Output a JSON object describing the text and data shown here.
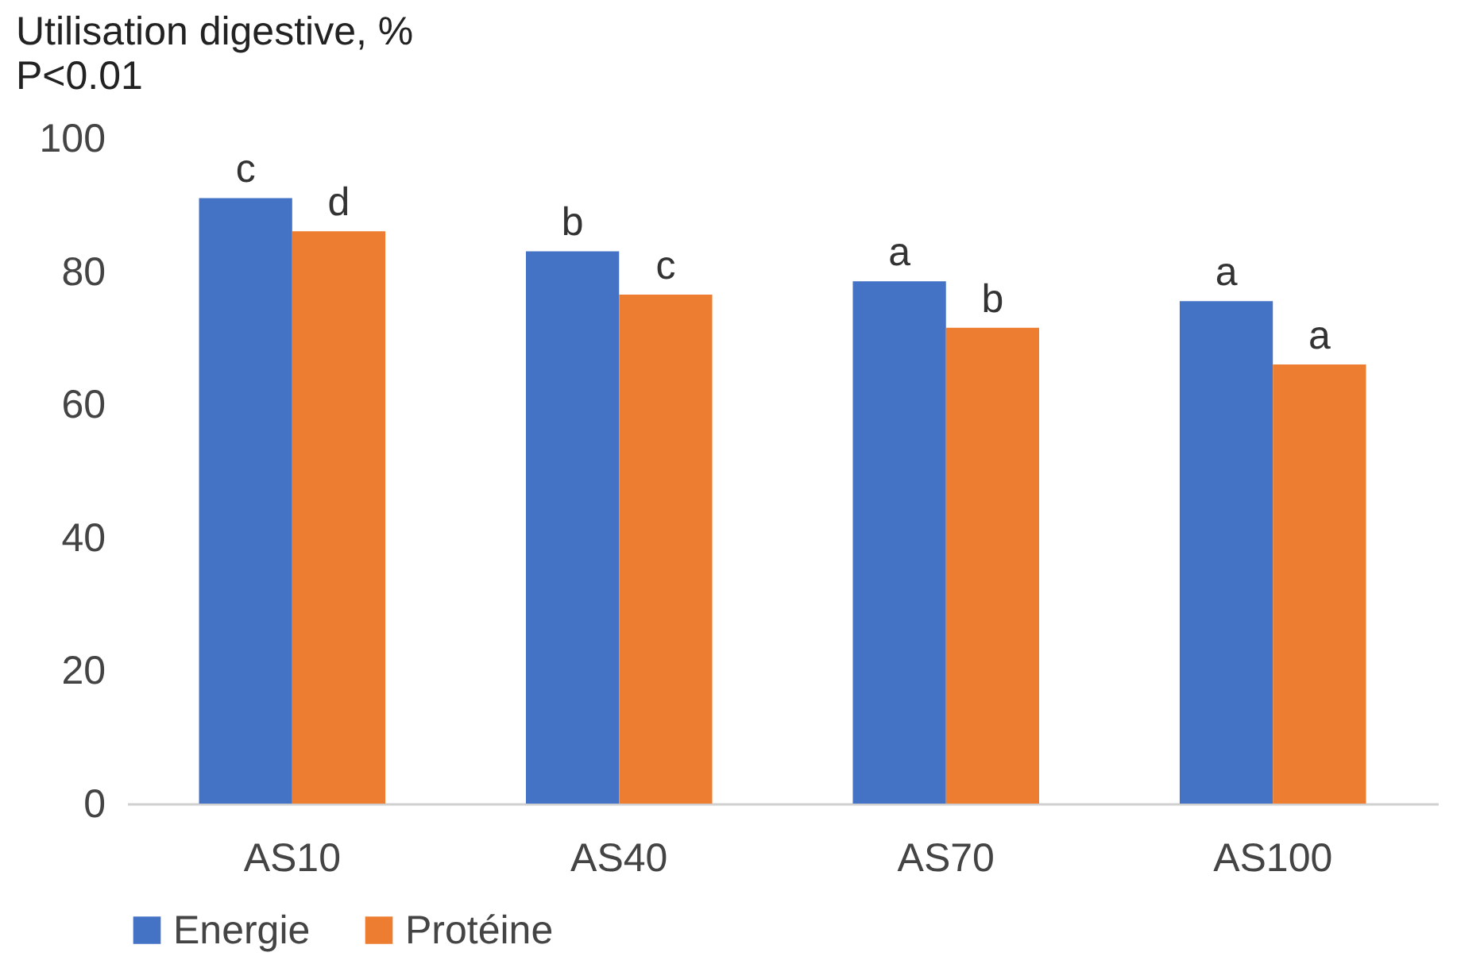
{
  "chart_data": {
    "type": "bar",
    "title": "Utilisation digestive, %",
    "subtitle": "P<0.01",
    "categories": [
      "AS10",
      "AS40",
      "AS70",
      "AS100"
    ],
    "series": [
      {
        "name": "Energie",
        "color": "#4472c4",
        "values": [
          91,
          83,
          78.5,
          75.5
        ]
      },
      {
        "name": "Protéine",
        "color": "#ed7d31",
        "values": [
          86,
          76.5,
          71.5,
          66
        ]
      }
    ],
    "ylim": [
      0,
      100
    ],
    "yticks": [
      0,
      20,
      40,
      60,
      80,
      100
    ],
    "grid": false,
    "legend": "bottom",
    "annotations": [
      {
        "text": "c",
        "x": "AS10",
        "y": 91
      },
      {
        "text": "d",
        "x": "AS10",
        "y": 86
      },
      {
        "text": "b",
        "x": "AS40",
        "y": 83
      },
      {
        "text": "c",
        "x": "AS40",
        "y": 76.5
      },
      {
        "text": "a",
        "x": "AS70",
        "y": 78.5
      },
      {
        "text": "b",
        "x": "AS70",
        "y": 71.5
      },
      {
        "text": "a",
        "x": "AS100",
        "y": 75.5
      },
      {
        "text": "a",
        "x": "AS100",
        "y": 66
      }
    ]
  }
}
